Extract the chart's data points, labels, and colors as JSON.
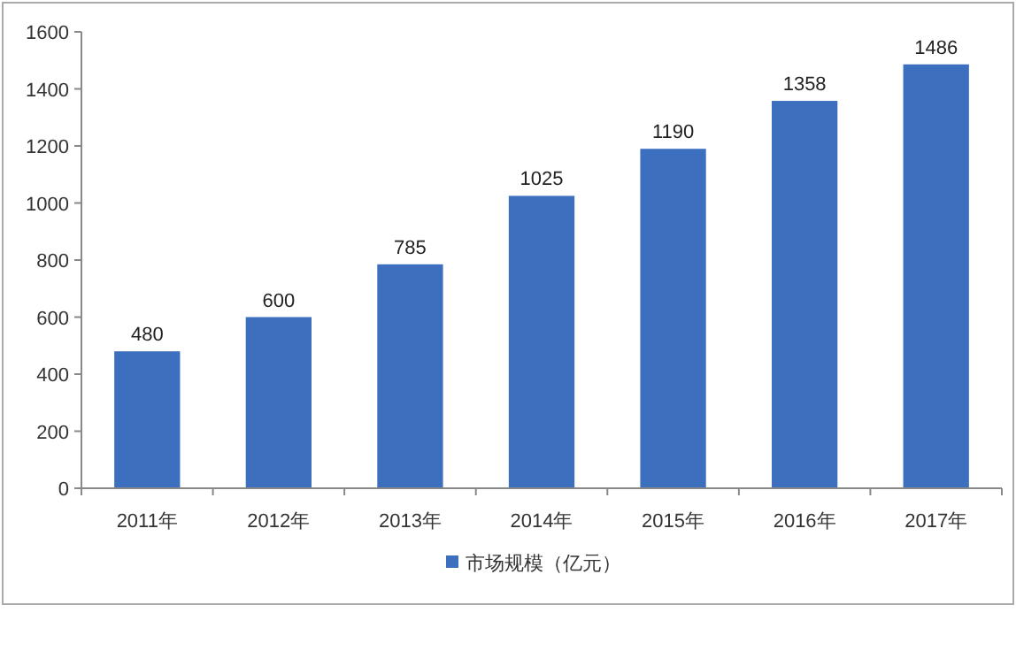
{
  "chart_data": {
    "type": "bar",
    "categories": [
      "2011年",
      "2012年",
      "2013年",
      "2014年",
      "2015年",
      "2016年",
      "2017年"
    ],
    "series": [
      {
        "name": "市场规模（亿元）",
        "color": "#3d6fbf",
        "values": [
          480,
          600,
          785,
          1025,
          1190,
          1358,
          1486
        ]
      }
    ],
    "ylim": [
      0,
      1600
    ],
    "yticks": [
      0,
      200,
      400,
      600,
      800,
      1000,
      1200,
      1400,
      1600
    ],
    "data_labels": true,
    "legend": "bottom"
  }
}
